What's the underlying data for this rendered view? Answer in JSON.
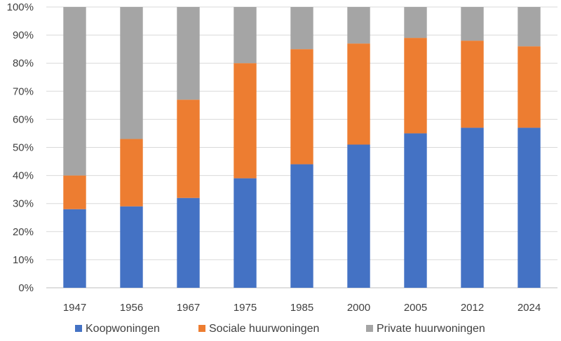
{
  "chart_data": {
    "type": "bar",
    "stacked": true,
    "title": "",
    "xlabel": "",
    "ylabel": "",
    "ylim": [
      0,
      100
    ],
    "y_ticks": [
      "0%",
      "10%",
      "20%",
      "30%",
      "40%",
      "50%",
      "60%",
      "70%",
      "80%",
      "90%",
      "100%"
    ],
    "categories": [
      "1947",
      "1956",
      "1967",
      "1975",
      "1985",
      "2000",
      "2005",
      "2012",
      "2024"
    ],
    "series": [
      {
        "name": "Koopwoningen",
        "color": "#4472C4",
        "values": [
          28,
          29,
          32,
          39,
          44,
          51,
          55,
          57,
          57
        ]
      },
      {
        "name": "Sociale huurwoningen",
        "color": "#ED7D31",
        "values": [
          12,
          24,
          35,
          41,
          41,
          36,
          34,
          31,
          29
        ]
      },
      {
        "name": "Private huurwoningen",
        "color": "#A5A5A5",
        "values": [
          60,
          47,
          33,
          20,
          15,
          13,
          11,
          12,
          14
        ]
      }
    ],
    "grid": true,
    "legend_position": "bottom"
  }
}
